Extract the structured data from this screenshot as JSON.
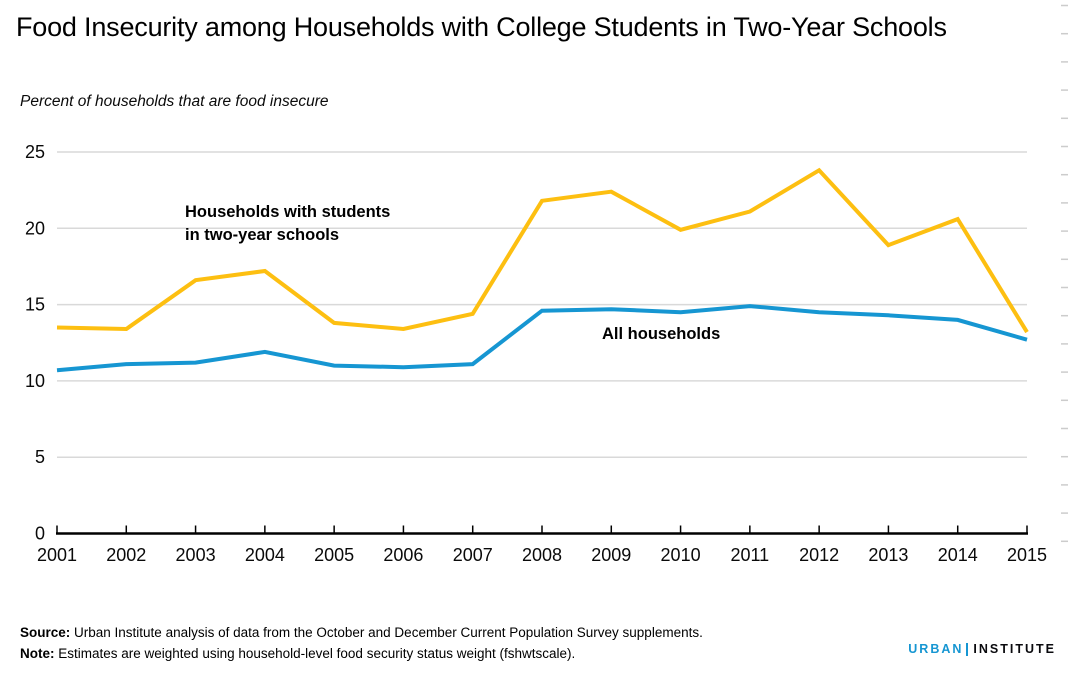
{
  "page": {
    "title": "Food Insecurity among Households with College Students in Two-Year Schools",
    "subtitle": "Percent of households that are food insecure"
  },
  "chart_data": {
    "type": "line",
    "title": "Food Insecurity among Households with College Students in Two-Year Schools",
    "xlabel": "",
    "ylabel": "Percent of households that are food insecure",
    "x": [
      2001,
      2002,
      2003,
      2004,
      2005,
      2006,
      2007,
      2008,
      2009,
      2010,
      2011,
      2012,
      2013,
      2014,
      2015
    ],
    "series": [
      {
        "name": "Households with students in two-year schools",
        "color": "#fdbf11",
        "values": [
          13.5,
          13.4,
          16.6,
          17.2,
          13.8,
          13.4,
          14.4,
          21.8,
          22.4,
          19.9,
          21.1,
          23.8,
          18.9,
          20.6,
          13.2
        ]
      },
      {
        "name": "All households",
        "color": "#1696d2",
        "values": [
          10.7,
          11.1,
          11.2,
          11.9,
          11.0,
          10.9,
          11.1,
          14.6,
          14.7,
          14.5,
          14.9,
          14.5,
          14.3,
          14.0,
          12.7
        ]
      }
    ],
    "ylim": [
      0,
      25
    ],
    "yticks": [
      0,
      5,
      10,
      15,
      20,
      25
    ],
    "grid": "horizontal gridlines at each y tick, light gray",
    "legend_position": "inline annotations on lines",
    "annotations": [
      {
        "text": "Households with students\nin two-year schools",
        "series": "Households with students in two-year schools"
      },
      {
        "text": "All households",
        "series": "All households"
      }
    ]
  },
  "footer": {
    "source_label": "Source:",
    "source_text": " Urban Institute analysis of data from the October and December Current Population Survey supplements.",
    "note_label": "Note:",
    "note_text": " Estimates are weighted using household-level food security status weight (fshwtscale)."
  },
  "logo": {
    "urban": "URBAN",
    "institute": "INSTITUTE"
  },
  "colors": {
    "accent_yellow": "#fdbf11",
    "accent_blue": "#1696d2",
    "grid": "#d9d9d9",
    "axis": "#000000",
    "edge_minor_tick": "#cccccc"
  }
}
